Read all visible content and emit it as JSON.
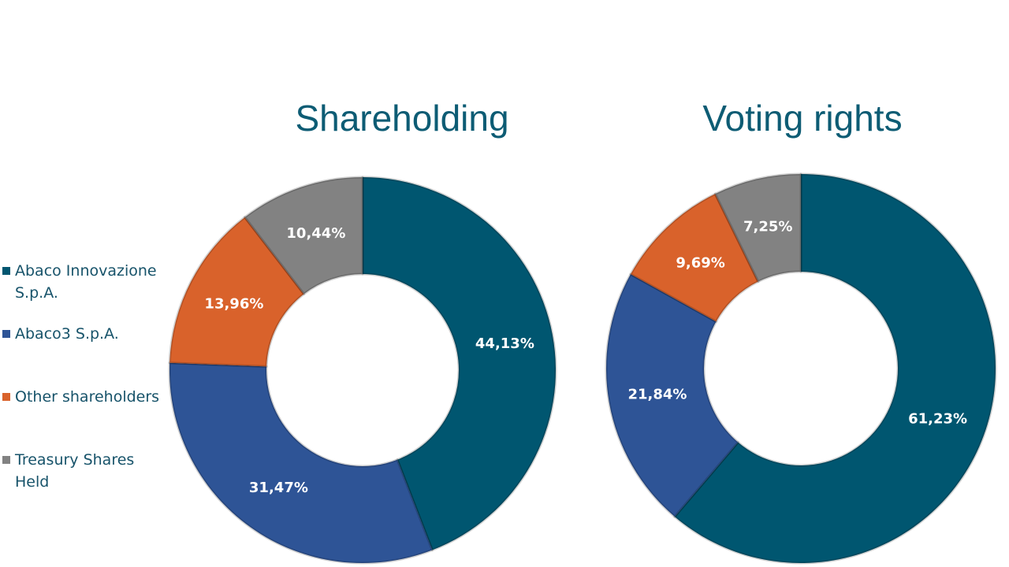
{
  "legend": [
    {
      "label": "Abaco Innovazione S.p.A.",
      "color": "#005670"
    },
    {
      "label": "Abaco3 S.p.A.",
      "color": "#2e5496"
    },
    {
      "label": "Other shareholders",
      "color": "#d9622b"
    },
    {
      "label": "Treasury Shares Held",
      "color": "#828282"
    }
  ],
  "chart_data": [
    {
      "type": "pie",
      "variant": "donut",
      "title": "Shareholding",
      "categories": [
        "Abaco Innovazione S.p.A.",
        "Abaco3 S.p.A.",
        "Other shareholders",
        "Treasury Shares Held"
      ],
      "values": [
        44.13,
        31.47,
        13.96,
        10.44
      ],
      "labels": [
        "44,13%",
        "31,47%",
        "13,96%",
        "10,44%"
      ],
      "colors": [
        "#005670",
        "#2e5496",
        "#d9622b",
        "#828282"
      ]
    },
    {
      "type": "pie",
      "variant": "donut",
      "title": "Voting rights",
      "categories": [
        "Abaco Innovazione S.p.A.",
        "Abaco3 S.p.A.",
        "Other shareholders",
        "Treasury Shares Held"
      ],
      "values": [
        61.23,
        21.84,
        9.69,
        7.25
      ],
      "labels": [
        "61,23%",
        "21,84%",
        "9,69%",
        "7,25%"
      ],
      "colors": [
        "#005670",
        "#2e5496",
        "#d9622b",
        "#828282"
      ]
    }
  ]
}
